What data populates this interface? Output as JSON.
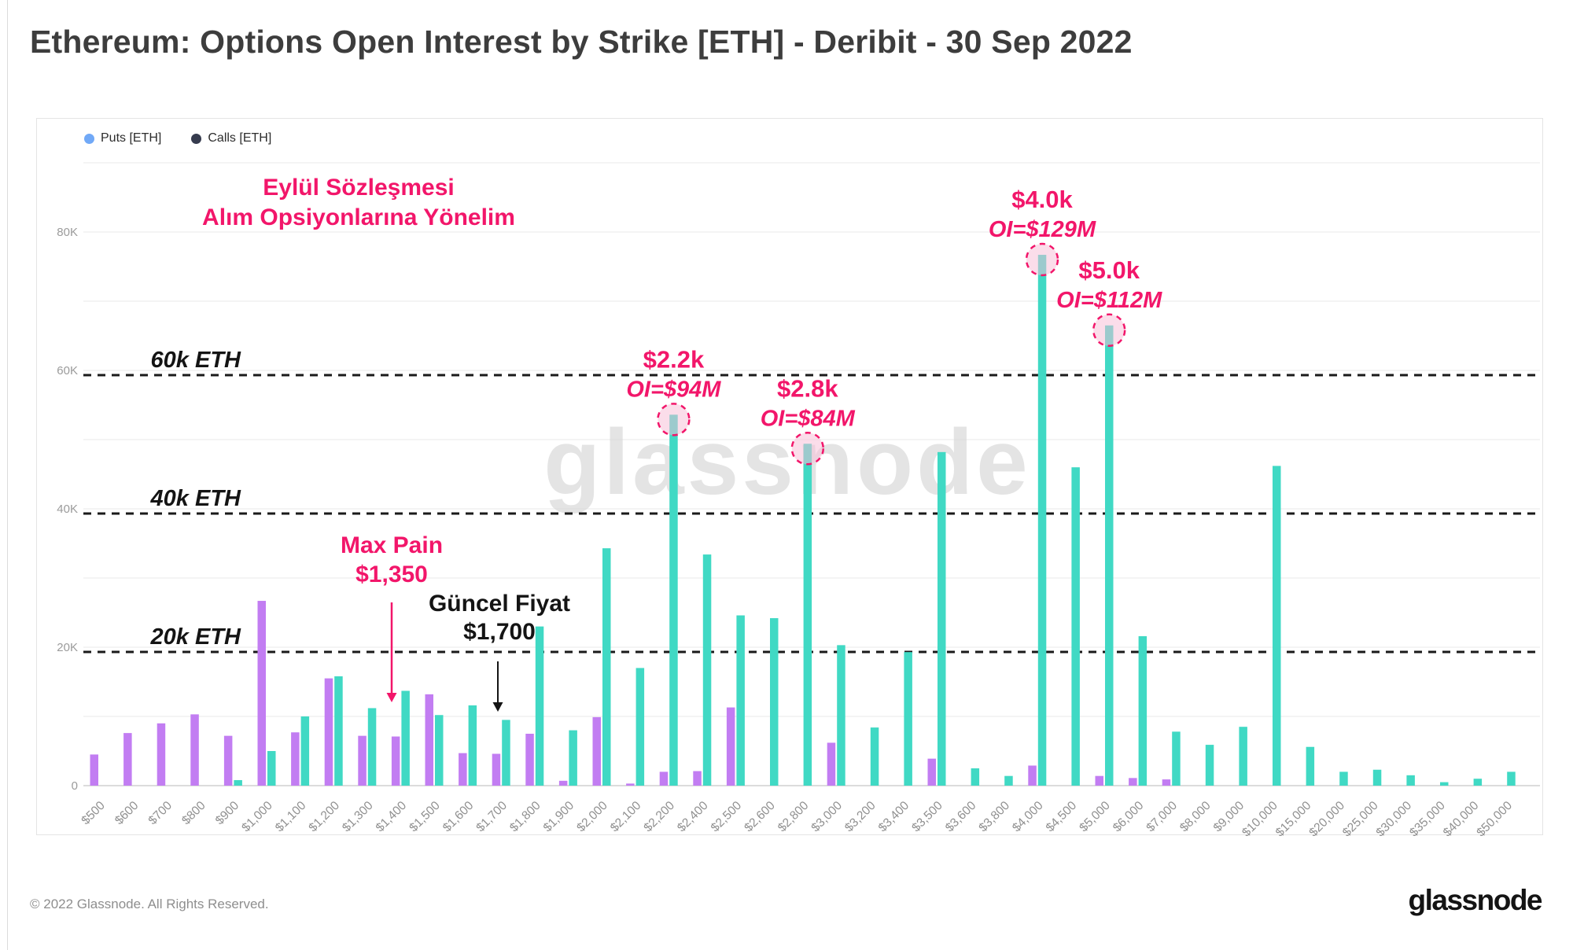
{
  "page": {
    "title": "Ethereum: Options Open Interest by Strike [ETH] - Deribit - 30 Sep 2022",
    "footer_copyright": "© 2022 Glassnode. All Rights Reserved.",
    "brand_logo": "glassnode",
    "watermark": "glassnode"
  },
  "legend": [
    {
      "label": "Puts [ETH]",
      "dot_color": "#71a9f7"
    },
    {
      "label": "Calls [ETH]",
      "dot_color": "#363b4e"
    }
  ],
  "chart_data": {
    "type": "bar",
    "title": "Ethereum: Options Open Interest by Strike [ETH] - Deribit - 30 Sep 2022",
    "unit": "K ETH",
    "ylim": [
      0,
      90
    ],
    "grid": "horizontal",
    "categories": [
      "$500",
      "$600",
      "$700",
      "$800",
      "$900",
      "$1,000",
      "$1,100",
      "$1,200",
      "$1,300",
      "$1,400",
      "$1,500",
      "$1,600",
      "$1,700",
      "$1,800",
      "$1,900",
      "$2,000",
      "$2,100",
      "$2,200",
      "$2,400",
      "$2,500",
      "$2,600",
      "$2,800",
      "$3,000",
      "$3,200",
      "$3,400",
      "$3,500",
      "$3,600",
      "$3,800",
      "$4,000",
      "$4,500",
      "$5,000",
      "$6,000",
      "$7,000",
      "$8,000",
      "$9,000",
      "$10,000",
      "$15,000",
      "$20,000",
      "$25,000",
      "$30,000",
      "$35,000",
      "$40,000",
      "$50,000"
    ],
    "series": [
      {
        "name": "Puts [ETH]",
        "values_k_eth": [
          4.5,
          7.6,
          9.0,
          10.3,
          7.2,
          26.7,
          7.7,
          15.5,
          7.2,
          7.1,
          13.2,
          4.7,
          4.6,
          7.5,
          0.7,
          9.9,
          0.3,
          2.0,
          2.1,
          11.3,
          0,
          0,
          6.2,
          0,
          0,
          3.9,
          0,
          0,
          2.9,
          0,
          1.4,
          1.1,
          0.9,
          0,
          0,
          0,
          0,
          0,
          0,
          0,
          0,
          0,
          0
        ]
      },
      {
        "name": "Calls [ETH]",
        "values_k_eth": [
          0,
          0,
          0,
          0,
          0.8,
          5.0,
          10.0,
          15.8,
          11.2,
          13.7,
          10.2,
          11.6,
          9.5,
          23.0,
          8.0,
          34.3,
          17.0,
          53.6,
          33.4,
          24.6,
          24.2,
          49.4,
          20.3,
          8.4,
          19.3,
          48.2,
          2.5,
          1.4,
          76.7,
          46.0,
          66.5,
          21.6,
          7.8,
          5.9,
          8.5,
          46.2,
          5.6,
          2.0,
          2.3,
          1.5,
          0.5,
          1.0,
          2.0
        ]
      }
    ],
    "yticks": [
      {
        "value": 0,
        "label": "0"
      },
      {
        "value": 20,
        "label": "20K"
      },
      {
        "value": 40,
        "label": "40K"
      },
      {
        "value": 60,
        "label": "60K"
      },
      {
        "value": 80,
        "label": "80K"
      }
    ],
    "reference_lines": [
      {
        "value": 20,
        "label": "20k ETH"
      },
      {
        "value": 40,
        "label": "40k ETH"
      },
      {
        "value": 60,
        "label": "60k ETH"
      }
    ],
    "annotations": [
      {
        "id": "september-note",
        "kind": "text",
        "lines": [
          "Eylül Sözleşmesi",
          "Alım Opsiyonlarına Yönelim"
        ],
        "color_key": "pink"
      },
      {
        "id": "max-pain",
        "kind": "arrow-text",
        "lines": [
          "Max Pain",
          "$1,350"
        ],
        "color_key": "pink"
      },
      {
        "id": "current-price",
        "kind": "arrow-text",
        "lines": [
          "Güncel Fiyat",
          "$1,700"
        ],
        "color_key": "black"
      },
      {
        "id": "strike-2200",
        "kind": "circled-bar",
        "label": "$2.2k",
        "oi": "OI=$94M",
        "category": "$2,200"
      },
      {
        "id": "strike-2800",
        "kind": "circled-bar",
        "label": "$2.8k",
        "oi": "OI=$84M",
        "category": "$2,800"
      },
      {
        "id": "strike-4000",
        "kind": "circled-bar",
        "label": "$4.0k",
        "oi": "OI=$129M",
        "category": "$4,000"
      },
      {
        "id": "strike-5000",
        "kind": "circled-bar",
        "label": "$5.0k",
        "oi": "OI=$112M",
        "category": "$5,000"
      }
    ],
    "colors": {
      "puts_bar": "#c27df2",
      "calls_bar": "#40d9c4",
      "pink": "#f2166a",
      "black": "#141414",
      "circle_fill": "#f8bcd5",
      "grid": "#f1f1f1",
      "baseline": "#dcdcdc",
      "dashed_line": "#1a1a1a",
      "axis_text": "#9b9b9b",
      "watermark": "#d6d6d6"
    }
  }
}
